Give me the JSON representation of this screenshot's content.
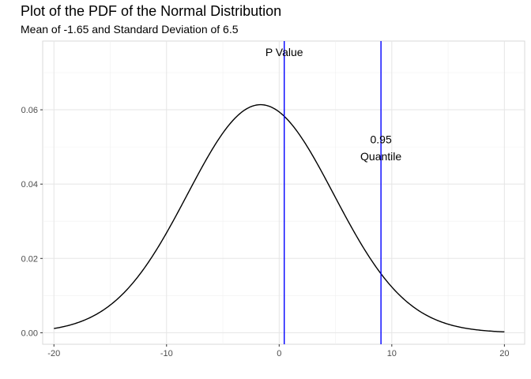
{
  "chart_data": {
    "type": "line",
    "title": "Plot of the PDF of the Normal Distribution",
    "subtitle": "Mean of -1.65 and Standard Deviation of 6.5",
    "distribution": {
      "mean": -1.65,
      "sd": 6.5
    },
    "xlim": [
      -21,
      21.8
    ],
    "ylim": [
      -0.0031,
      0.0785
    ],
    "x_domain": [
      -20,
      20
    ],
    "x_ticks": [
      -20,
      -10,
      0,
      10,
      20
    ],
    "x_tick_labels": [
      "-20",
      "-10",
      "0",
      "10",
      "20"
    ],
    "y_ticks": [
      0,
      0.02,
      0.04,
      0.06
    ],
    "y_tick_labels": [
      "0.00",
      "0.02",
      "0.04",
      "0.06"
    ],
    "grid": true,
    "vlines": [
      {
        "x": 0.45,
        "color": "#0000ff"
      },
      {
        "x": 9.04,
        "color": "#0000ff"
      }
    ],
    "annotations": [
      {
        "text": "P Value",
        "x": 0.45,
        "y": 0.0755
      },
      {
        "text": "0.95",
        "x": 9.04,
        "y": 0.052
      },
      {
        "text": "Quantile",
        "x": 9.04,
        "y": 0.0475
      }
    ],
    "line_color": "#000000"
  }
}
